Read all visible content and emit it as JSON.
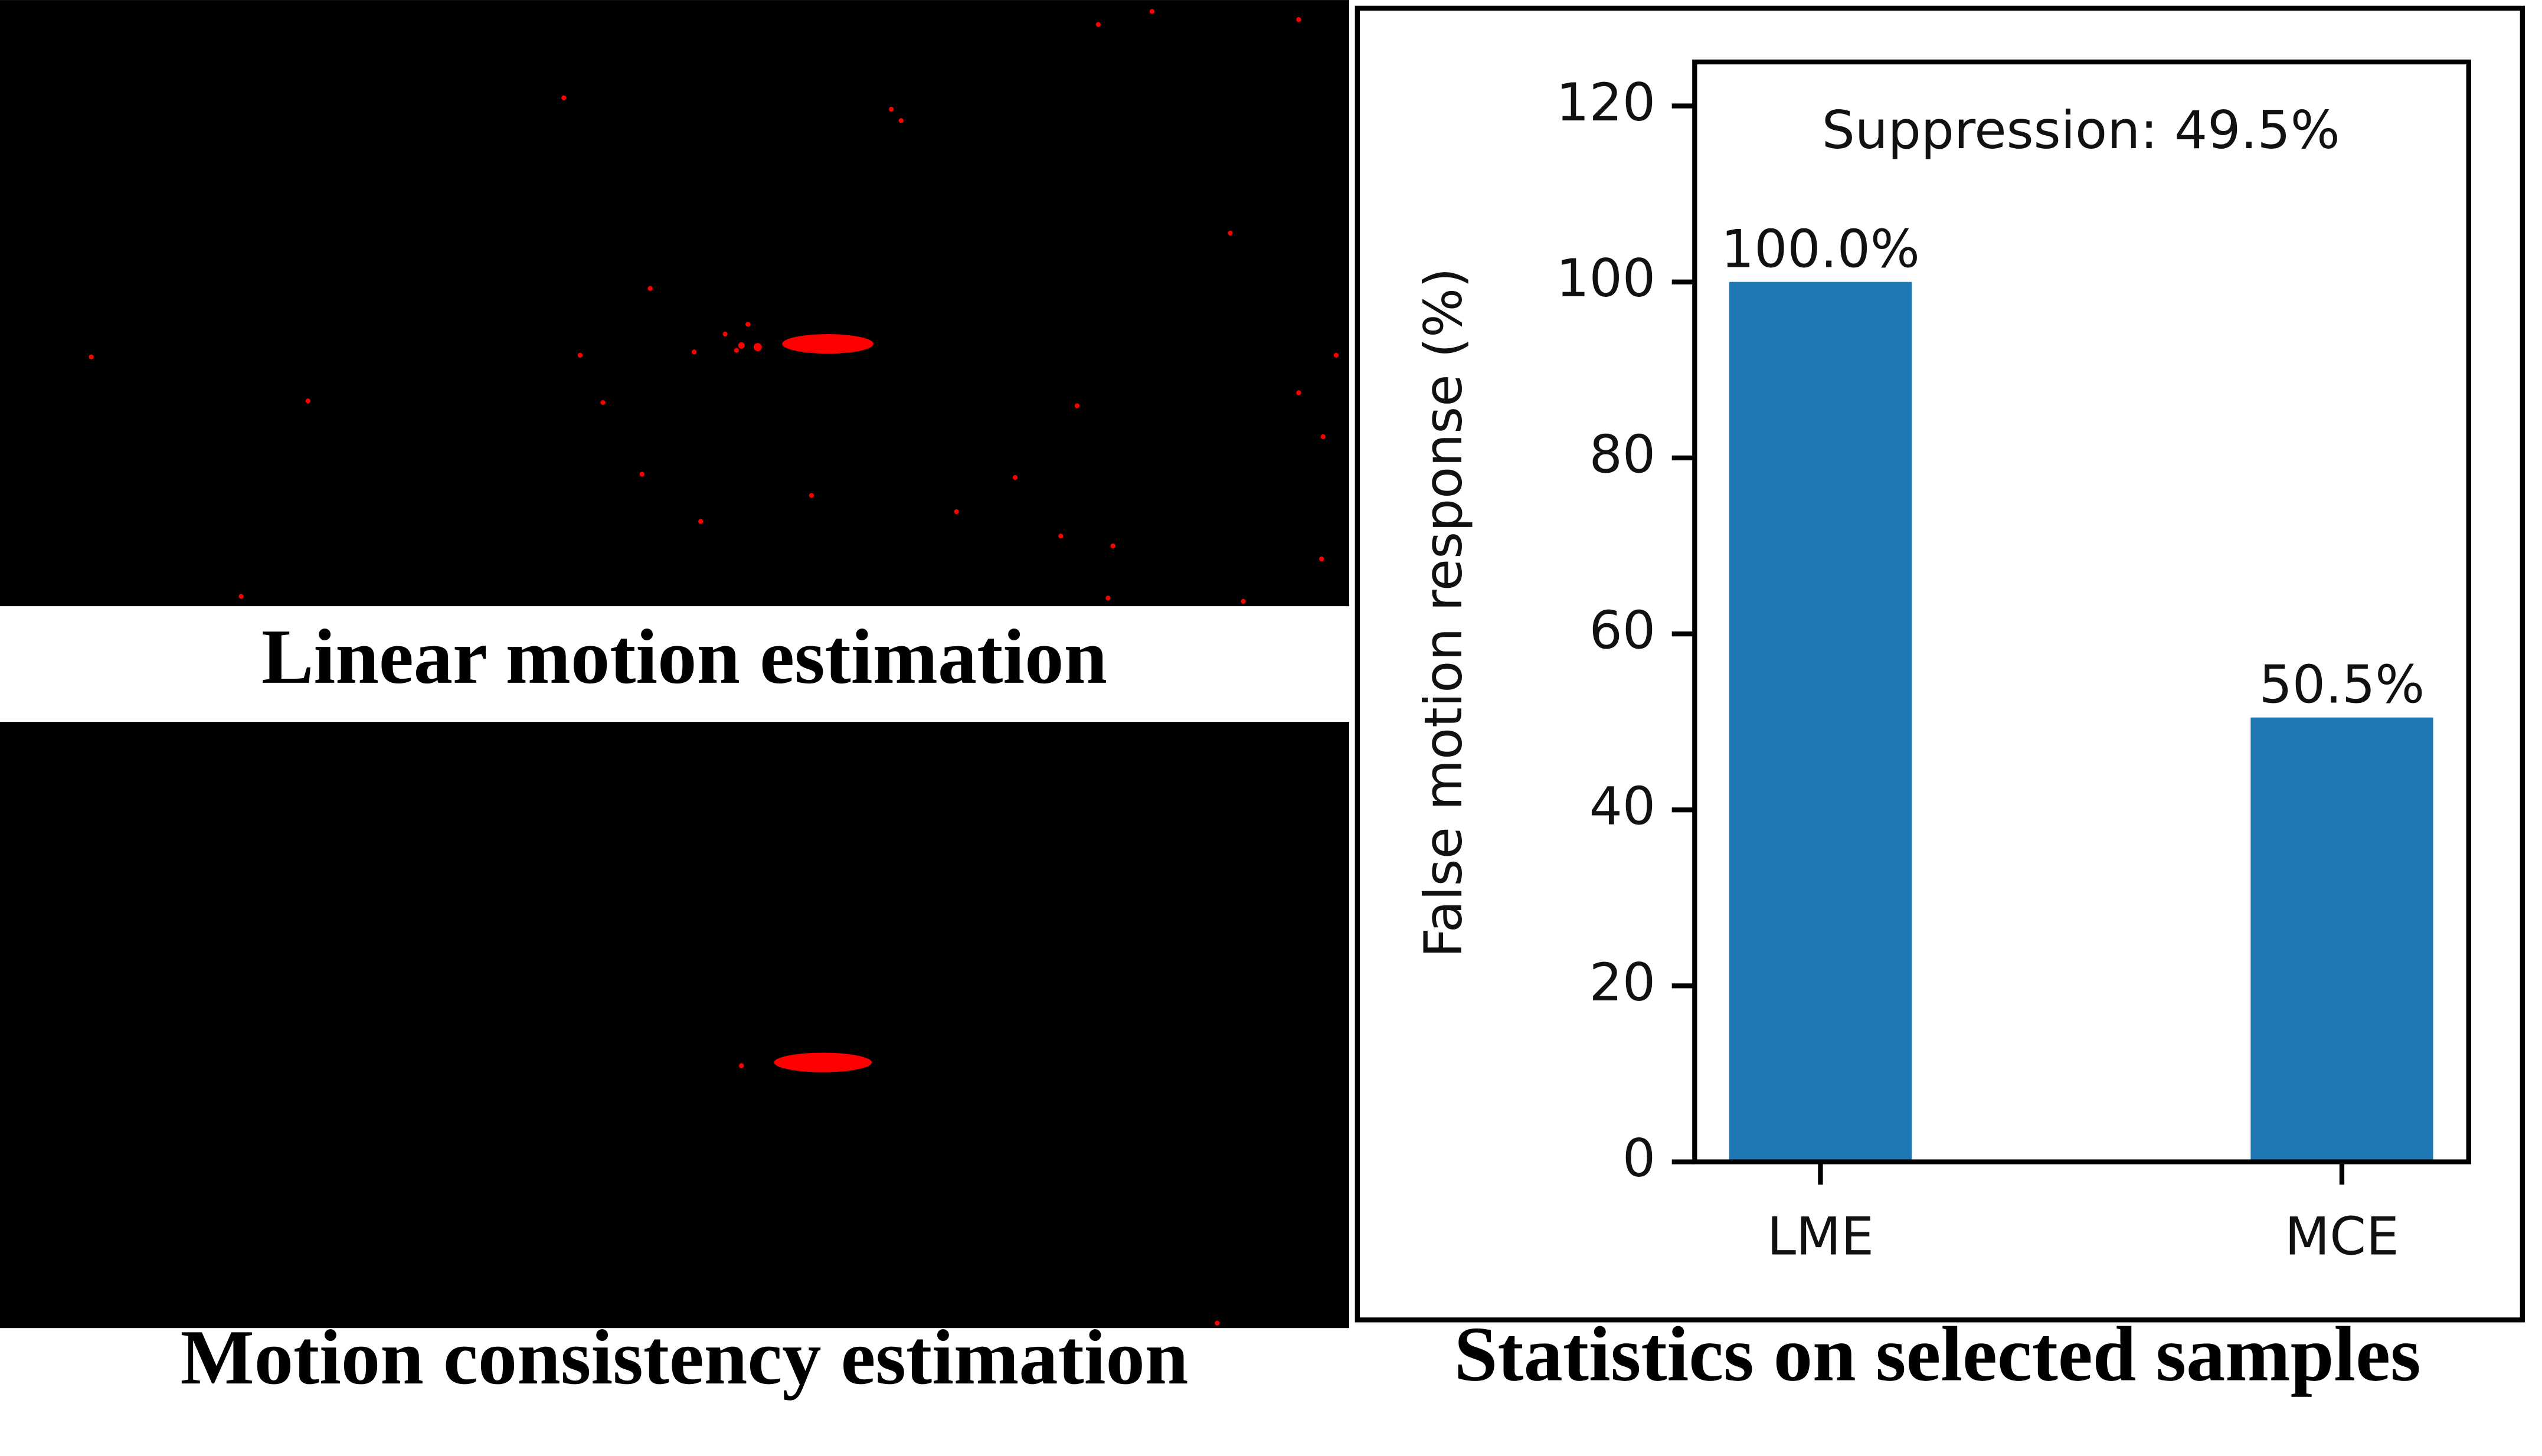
{
  "panels": [
    {
      "caption": "Linear motion estimation"
    },
    {
      "caption": "Motion consistency estimation"
    },
    {
      "caption": "Statistics on selected samples"
    }
  ],
  "chart_data": {
    "type": "bar",
    "y_label": "False motion response (%)",
    "annotation": "Suppression: 49.5%",
    "categories": [
      "LME",
      "MCE"
    ],
    "values": [
      100.0,
      50.5
    ],
    "value_labels": [
      "100.0%",
      "50.5%"
    ],
    "color": "#1f77b4",
    "ylim": [
      0,
      125
    ],
    "yticks": [
      0,
      20,
      40,
      60,
      80,
      100,
      120
    ],
    "grid": false
  }
}
